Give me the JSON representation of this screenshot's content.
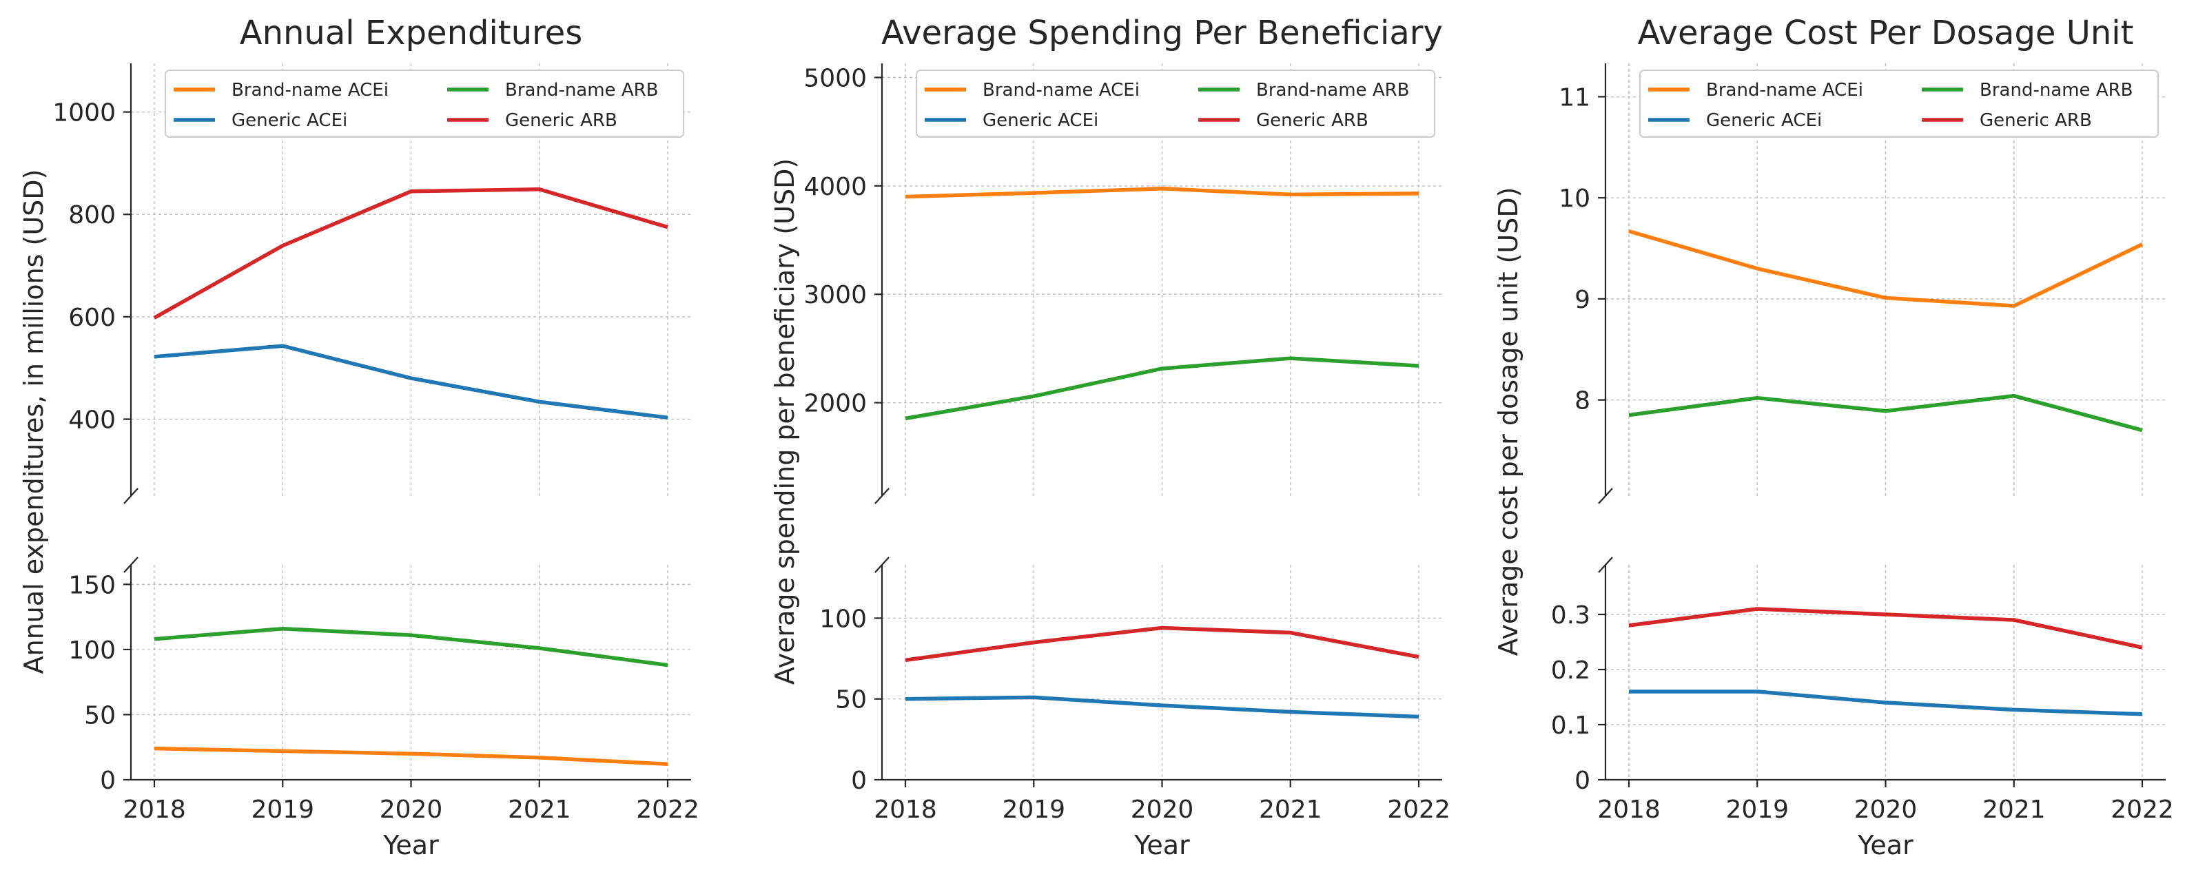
{
  "colors": {
    "Brand-name ACEi": "#ff7f0e",
    "Generic ACEi": "#1f77b4",
    "Brand-name ARB": "#2ca02c",
    "Generic ARB": "#d62728"
  },
  "chart_data": [
    {
      "type": "line",
      "title": "Annual Expenditures",
      "xlabel": "Year",
      "ylabel": "Annual expenditures, in millions (USD)",
      "x": [
        2018,
        2019,
        2020,
        2021,
        2022
      ],
      "x_ticks": [
        "2018",
        "2019",
        "2020",
        "2021",
        "2022"
      ],
      "legend": [
        "Brand-name ACEi",
        "Generic ACEi",
        "Brand-name ARB",
        "Generic ARB"
      ],
      "top_ylim": [
        250,
        1095
      ],
      "top_yticks": [
        400,
        600,
        800,
        1000
      ],
      "top_yticklabels": [
        "400",
        "600",
        "800",
        "1000"
      ],
      "bottom_ylim": [
        0,
        165
      ],
      "bottom_yticks": [
        0,
        50,
        100,
        150
      ],
      "bottom_yticklabels": [
        "0",
        "50",
        "100",
        "150"
      ],
      "series": [
        {
          "name": "Brand-name ACEi",
          "values": [
            24,
            22,
            20,
            17,
            12
          ],
          "panel": "bottom"
        },
        {
          "name": "Generic ACEi",
          "values": [
            522,
            543,
            480,
            434,
            403
          ],
          "panel": "top"
        },
        {
          "name": "Brand-name ARB",
          "values": [
            108,
            116,
            111,
            101,
            88
          ],
          "panel": "bottom"
        },
        {
          "name": "Generic ARB",
          "values": [
            598,
            739,
            845,
            849,
            775
          ],
          "panel": "top"
        }
      ]
    },
    {
      "type": "line",
      "title": "Average Spending Per Beneficiary",
      "xlabel": "Year",
      "ylabel": "Average spending per beneficiary (USD)",
      "x": [
        2018,
        2019,
        2020,
        2021,
        2022
      ],
      "x_ticks": [
        "2018",
        "2019",
        "2020",
        "2021",
        "2022"
      ],
      "legend": [
        "Brand-name ACEi",
        "Generic ACEi",
        "Brand-name ARB",
        "Generic ARB"
      ],
      "top_ylim": [
        1140,
        5130
      ],
      "top_yticks": [
        2000,
        3000,
        4000,
        5000
      ],
      "top_yticklabels": [
        "2000",
        "3000",
        "4000",
        "5000"
      ],
      "bottom_ylim": [
        0,
        133
      ],
      "bottom_yticks": [
        0,
        50,
        100
      ],
      "bottom_yticklabels": [
        "0",
        "50",
        "100"
      ],
      "series": [
        {
          "name": "Brand-name ACEi",
          "values": [
            3900,
            3935,
            3975,
            3920,
            3930
          ],
          "panel": "top"
        },
        {
          "name": "Generic ACEi",
          "values": [
            50,
            51,
            46,
            42,
            39
          ],
          "panel": "bottom"
        },
        {
          "name": "Brand-name ARB",
          "values": [
            1855,
            2060,
            2315,
            2410,
            2340
          ],
          "panel": "top"
        },
        {
          "name": "Generic ARB",
          "values": [
            74,
            85,
            94,
            91,
            76
          ],
          "panel": "bottom"
        }
      ]
    },
    {
      "type": "line",
      "title": "Average Cost Per Dosage Unit",
      "xlabel": "Year",
      "ylabel": "Average cost per dosage unit (USD)",
      "x": [
        2018,
        2019,
        2020,
        2021,
        2022
      ],
      "x_ticks": [
        "2018",
        "2019",
        "2020",
        "2021",
        "2022"
      ],
      "legend": [
        "Brand-name ACEi",
        "Generic ACEi",
        "Brand-name ARB",
        "Generic ARB"
      ],
      "top_ylim": [
        7.05,
        11.33
      ],
      "top_yticks": [
        8,
        9,
        10,
        11
      ],
      "top_yticklabels": [
        "8",
        "9",
        "10",
        "11"
      ],
      "bottom_ylim": [
        0,
        0.39
      ],
      "bottom_yticks": [
        0,
        0.1,
        0.2,
        0.3
      ],
      "bottom_yticklabels": [
        "0",
        "0.1",
        "0.2",
        "0.3"
      ],
      "series": [
        {
          "name": "Brand-name ACEi",
          "values": [
            9.67,
            9.3,
            9.01,
            8.93,
            9.54
          ],
          "panel": "top"
        },
        {
          "name": "Generic ACEi",
          "values": [
            0.16,
            0.16,
            0.14,
            0.127,
            0.119
          ],
          "panel": "bottom"
        },
        {
          "name": "Brand-name ARB",
          "values": [
            7.85,
            8.02,
            7.89,
            8.04,
            7.7
          ],
          "panel": "top"
        },
        {
          "name": "Generic ARB",
          "values": [
            0.28,
            0.31,
            0.3,
            0.29,
            0.24
          ],
          "panel": "bottom"
        }
      ]
    }
  ]
}
